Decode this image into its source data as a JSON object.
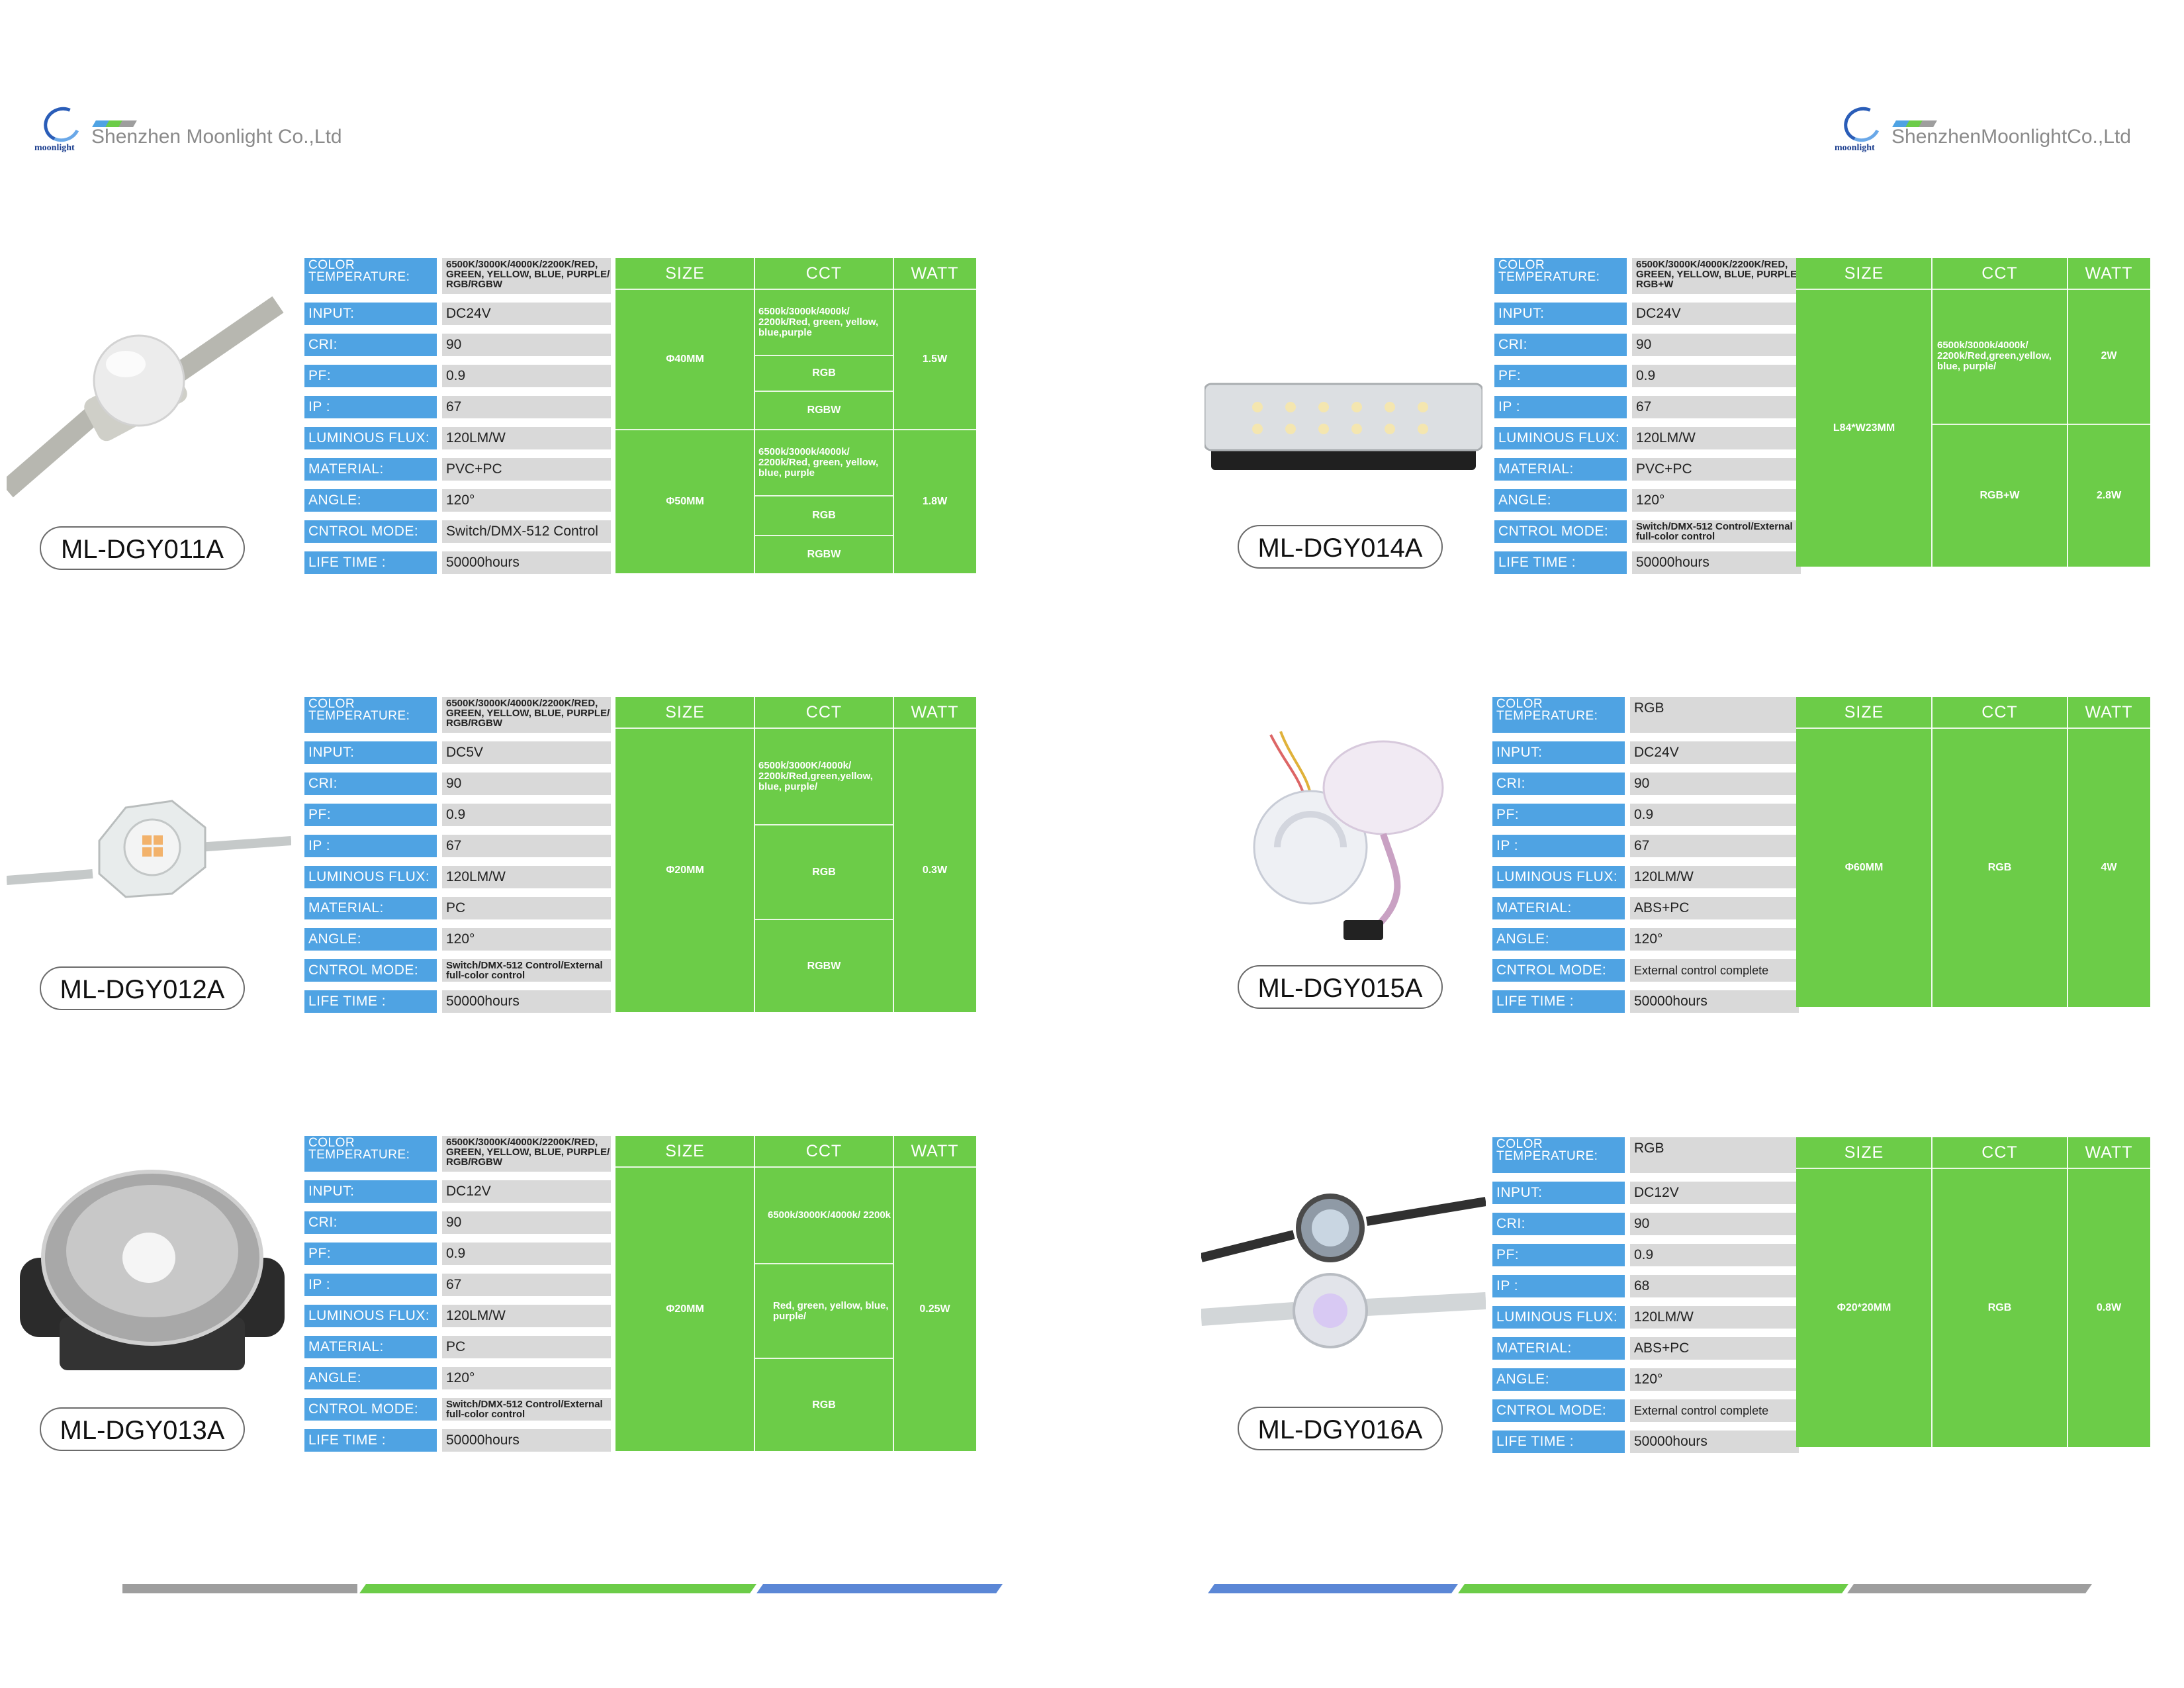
{
  "company": {
    "left_name": "Shenzhen Moonlight Co.,Ltd",
    "right_name": "ShenzhenMoonlightCo.,Ltd",
    "logo_text": "moonlight",
    "logo_icon": "moonlight-swirl-logo",
    "bar_colors": [
      "#4fa3e3",
      "#6ccc48",
      "#9e9e9e"
    ]
  },
  "labels": {
    "color_temperature": "COLOR TEMPERATURE:",
    "input": "INPUT:",
    "cri": "CRI:",
    "pf": "PF:",
    "ip": "IP :",
    "luminous_flux": "LUMINOUS FLUX:",
    "material": "MATERIAL:",
    "angle": "ANGLE:",
    "control_mode": "CNTROL MODE:",
    "life_time": "LIFE TIME :"
  },
  "grid_headers": {
    "size": "SIZE",
    "cct": "CCT",
    "watt": "WATT"
  },
  "colors": {
    "label_blue": "#4fa3e3",
    "value_gray": "#d9d9d9",
    "grid_green": "#6ccc48",
    "stripe_gray": "#9e9e9e",
    "stripe_blue": "#5b87d6"
  },
  "products": [
    {
      "model": "ML-DGY011A",
      "specs": {
        "color_temperature": "6500K/3000K/4000K/2200K/RED, GREEN, YELLOW, BLUE, PURPLE/ RGB/RGBW",
        "input": "DC24V",
        "cri": "90",
        "pf": "0.9",
        "ip": "67",
        "luminous_flux": "120LM/W",
        "material": "PVC+PC",
        "angle": "120°",
        "control_mode": "Switch/DMX-512 Control",
        "life_time": "50000hours"
      },
      "options": [
        {
          "size": "Φ40MM",
          "watt": "1.5W",
          "cct": [
            "6500k/3000k/4000k/ 2200k/Red, green, yellow, blue,purple",
            "RGB",
            "RGBW"
          ]
        },
        {
          "size": "Φ50MM",
          "watt": "1.8W",
          "cct": [
            "6500k/3000k/4000k/ 2200k/Red, green, yellow, blue, purple",
            "RGB",
            "RGBW"
          ]
        }
      ]
    },
    {
      "model": "ML-DGY012A",
      "specs": {
        "color_temperature": "6500K/3000K/4000K/2200K/RED, GREEN, YELLOW, BLUE, PURPLE/ RGB/RGBW",
        "input": "DC5V",
        "cri": "90",
        "pf": "0.9",
        "ip": "67",
        "luminous_flux": "120LM/W",
        "material": "PC",
        "angle": "120°",
        "control_mode": "Switch/DMX-512 Control/External full-color control",
        "life_time": "50000hours"
      },
      "options": [
        {
          "size": "Φ20MM",
          "watt": "0.3W",
          "cct": [
            "6500k/3000K/4000k/ 2200k/Red,green,yellow, blue, purple/",
            "RGB",
            "RGBW"
          ]
        }
      ]
    },
    {
      "model": "ML-DGY013A",
      "specs": {
        "color_temperature": "6500K/3000K/4000K/2200K/RED, GREEN, YELLOW, BLUE, PURPLE/ RGB/RGBW",
        "input": "DC12V",
        "cri": "90",
        "pf": "0.9",
        "ip": "67",
        "luminous_flux": "120LM/W",
        "material": "PC",
        "angle": "120°",
        "control_mode": "Switch/DMX-512 Control/External full-color control",
        "life_time": "50000hours"
      },
      "options": [
        {
          "size": "Φ20MM",
          "watt": "0.25W",
          "cct": [
            "6500k/3000K/4000k/ 2200k",
            "Red, green, yellow, blue, purple/",
            "RGB"
          ]
        }
      ]
    },
    {
      "model": "ML-DGY014A",
      "specs": {
        "color_temperature": "6500K/3000K/4000K/2200K/RED, GREEN, YELLOW, BLUE, PURPLE/ RGB+W",
        "input": "DC24V",
        "cri": "90",
        "pf": "0.9",
        "ip": "67",
        "luminous_flux": "120LM/W",
        "material": "PVC+PC",
        "angle": "120°",
        "control_mode": "Switch/DMX-512 Control/External full-color control",
        "life_time": "50000hours"
      },
      "options": [
        {
          "size": "L84*W23MM",
          "watt": "2W",
          "cct": [
            "6500k/3000k/4000k/ 2200k/Red,green,yellow, blue, purple/"
          ]
        },
        {
          "size": "",
          "watt": "2.8W",
          "cct": [
            "RGB+W"
          ]
        }
      ]
    },
    {
      "model": "ML-DGY015A",
      "specs": {
        "color_temperature": "RGB",
        "input": "DC24V",
        "cri": "90",
        "pf": "0.9",
        "ip": "67",
        "luminous_flux": "120LM/W",
        "material": "ABS+PC",
        "angle": "120°",
        "control_mode": "External control complete",
        "life_time": "50000hours"
      },
      "options": [
        {
          "size": "Φ60MM",
          "watt": "4W",
          "cct": [
            "RGB"
          ]
        }
      ]
    },
    {
      "model": "ML-DGY016A",
      "specs": {
        "color_temperature": "RGB",
        "input": "DC12V",
        "cri": "90",
        "pf": "0.9",
        "ip": "68",
        "luminous_flux": "120LM/W",
        "material": "ABS+PC",
        "angle": "120°",
        "control_mode": "External control complete",
        "life_time": "50000hours"
      },
      "options": [
        {
          "size": "Φ20*20MM",
          "watt": "0.8W",
          "cct": [
            "RGB"
          ]
        }
      ]
    }
  ]
}
